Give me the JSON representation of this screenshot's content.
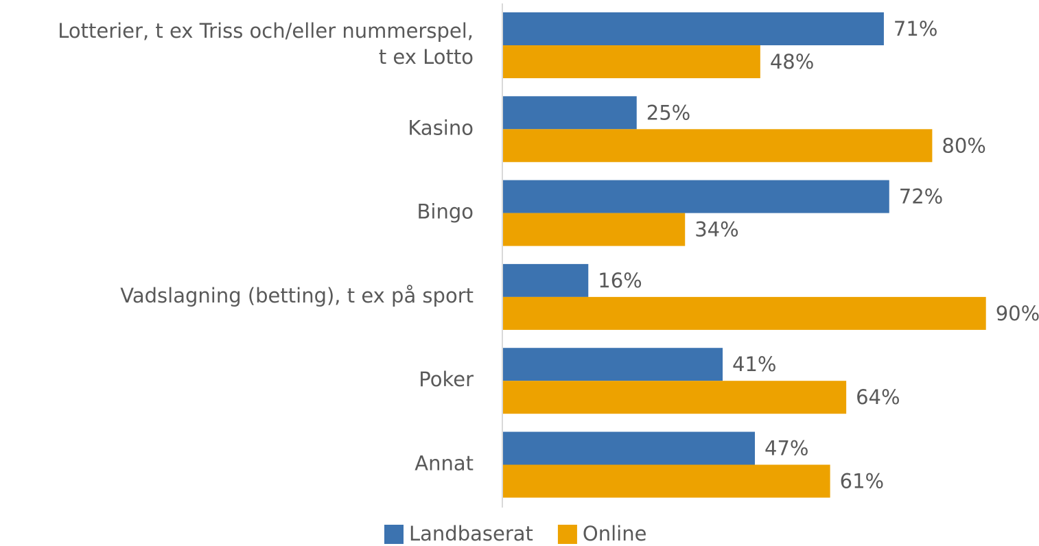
{
  "chart_data": {
    "type": "bar",
    "orientation": "horizontal",
    "categories": [
      "Lotterier, t ex Triss och/eller nummerspel,\nt ex Lotto",
      "Kasino",
      "Bingo",
      "Vadslagning (betting), t ex på sport",
      "Poker",
      "Annat"
    ],
    "series": [
      {
        "name": "Landbaserat",
        "color": "#3c73b0",
        "values": [
          71,
          25,
          72,
          16,
          41,
          47
        ],
        "value_labels": [
          "71%",
          "25%",
          "72%",
          "16%",
          "41%",
          "47%"
        ]
      },
      {
        "name": "Online",
        "color": "#eda200",
        "values": [
          48,
          80,
          34,
          90,
          64,
          61
        ],
        "value_labels": [
          "48%",
          "80%",
          "34%",
          "90%",
          "64%",
          "61%"
        ]
      }
    ],
    "xlim": [
      0,
      100
    ],
    "legend": "bottom"
  }
}
